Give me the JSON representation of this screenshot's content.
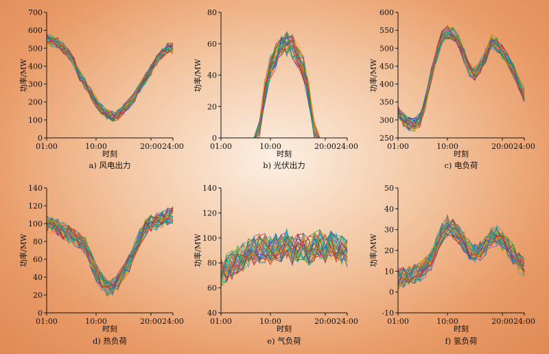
{
  "chart_data": [
    {
      "type": "line",
      "caption": "a) 风电出力",
      "xlabel": "时刻",
      "ylabel": "功率/MW",
      "xticks": [
        "01:00",
        "10:00",
        "20:00",
        "24:00"
      ],
      "xtick_hours": [
        1,
        10,
        20,
        24
      ],
      "ylim": [
        0,
        700
      ],
      "yticks": [
        0,
        100,
        200,
        300,
        400,
        500,
        600,
        700
      ],
      "hours": [
        1,
        2,
        3,
        4,
        5,
        6,
        7,
        8,
        9,
        10,
        11,
        12,
        13,
        14,
        15,
        16,
        17,
        18,
        19,
        20,
        21,
        22,
        23,
        24
      ],
      "mean": [
        550,
        540,
        530,
        500,
        470,
        420,
        350,
        300,
        250,
        200,
        160,
        130,
        120,
        130,
        160,
        190,
        230,
        280,
        330,
        380,
        430,
        470,
        500,
        500
      ],
      "spread": 30,
      "series_count": 36
    },
    {
      "type": "line",
      "caption": "b) 光伏出力",
      "xlabel": "时刻",
      "ylabel": "功率/MW",
      "xticks": [
        "01:00",
        "10:00",
        "20:00",
        "24:00"
      ],
      "xtick_hours": [
        1,
        10,
        20,
        24
      ],
      "ylim": [
        0,
        80
      ],
      "yticks": [
        0,
        20,
        40,
        60,
        80
      ],
      "hours": [
        1,
        2,
        3,
        4,
        5,
        6,
        7,
        8,
        9,
        10,
        11,
        12,
        13,
        14,
        15,
        16,
        17,
        18,
        19,
        20,
        21,
        22,
        23,
        24
      ],
      "mean": [
        0,
        0,
        0,
        0,
        0,
        0,
        0,
        3,
        30,
        45,
        52,
        58,
        60,
        58,
        52,
        45,
        28,
        3,
        0,
        0,
        0,
        0,
        0,
        0
      ],
      "spread": 8,
      "series_count": 36
    },
    {
      "type": "line",
      "caption": "c) 电负荷",
      "xlabel": "时刻",
      "ylabel": "功率/MW",
      "xticks": [
        "01:00",
        "10:00",
        "20:00",
        "24:00"
      ],
      "xtick_hours": [
        1,
        10,
        20,
        24
      ],
      "ylim": [
        250,
        600
      ],
      "yticks": [
        250,
        300,
        350,
        400,
        450,
        500,
        550,
        600
      ],
      "hours": [
        1,
        2,
        3,
        4,
        5,
        6,
        7,
        8,
        9,
        10,
        11,
        12,
        13,
        14,
        15,
        16,
        17,
        18,
        19,
        20,
        21,
        22,
        23,
        24
      ],
      "mean": [
        320,
        300,
        290,
        285,
        300,
        350,
        420,
        480,
        530,
        545,
        540,
        520,
        480,
        440,
        430,
        450,
        480,
        520,
        510,
        490,
        470,
        440,
        400,
        370
      ],
      "spread": 20,
      "series_count": 36
    },
    {
      "type": "line",
      "caption": "d) 热负荷",
      "xlabel": "时刻",
      "ylabel": "功率/MW",
      "xticks": [
        "01:00",
        "10:00",
        "20:00",
        "24:00"
      ],
      "xtick_hours": [
        1,
        10,
        20,
        24
      ],
      "ylim": [
        0,
        140
      ],
      "yticks": [
        0,
        20,
        40,
        60,
        80,
        100,
        120,
        140
      ],
      "hours": [
        1,
        2,
        3,
        4,
        5,
        6,
        7,
        8,
        9,
        10,
        11,
        12,
        13,
        14,
        15,
        16,
        17,
        18,
        19,
        20,
        21,
        22,
        23,
        24
      ],
      "mean": [
        100,
        98,
        95,
        92,
        88,
        85,
        80,
        75,
        60,
        45,
        35,
        28,
        30,
        35,
        45,
        55,
        70,
        85,
        95,
        100,
        102,
        105,
        108,
        110
      ],
      "spread": 10,
      "series_count": 36
    },
    {
      "type": "line",
      "caption": "e) 气负荷",
      "xlabel": "时刻",
      "ylabel": "功率/MW",
      "xticks": [
        "01:00",
        "10:00",
        "20:00",
        "24:00"
      ],
      "xtick_hours": [
        1,
        10,
        20,
        24
      ],
      "ylim": [
        40,
        140
      ],
      "yticks": [
        40,
        60,
        80,
        100,
        120,
        140
      ],
      "hours": [
        1,
        2,
        3,
        4,
        5,
        6,
        7,
        8,
        9,
        10,
        11,
        12,
        13,
        14,
        15,
        16,
        17,
        18,
        19,
        20,
        21,
        22,
        23,
        24
      ],
      "mean": [
        72,
        75,
        78,
        82,
        85,
        88,
        90,
        92,
        92,
        90,
        93,
        92,
        95,
        90,
        92,
        94,
        90,
        93,
        95,
        92,
        94,
        92,
        90,
        88
      ],
      "spread": 12,
      "series_count": 36
    },
    {
      "type": "line",
      "caption": "f) 氢负荷",
      "xlabel": "时刻",
      "ylabel": "功率/MW",
      "xticks": [
        "01:00",
        "10:00",
        "20:00",
        "24:00"
      ],
      "xtick_hours": [
        1,
        10,
        20,
        24
      ],
      "ylim": [
        -10,
        50
      ],
      "yticks": [
        -10,
        0,
        10,
        20,
        30,
        40,
        50
      ],
      "hours": [
        1,
        2,
        3,
        4,
        5,
        6,
        7,
        8,
        9,
        10,
        11,
        12,
        13,
        14,
        15,
        16,
        17,
        18,
        19,
        20,
        21,
        22,
        23,
        24
      ],
      "mean": [
        6,
        7,
        8,
        9,
        10,
        12,
        15,
        22,
        28,
        32,
        30,
        28,
        24,
        20,
        19,
        20,
        22,
        26,
        27,
        25,
        22,
        18,
        14,
        12
      ],
      "spread": 5,
      "series_count": 36
    }
  ],
  "palette": [
    "#1f77b4",
    "#ff7f0e",
    "#2ca02c",
    "#d62728",
    "#9467bd",
    "#8c564b",
    "#e377c2",
    "#7f7f7f",
    "#bcbd22",
    "#17becf",
    "#3a55b4",
    "#f0a500",
    "#00a86b",
    "#b22222",
    "#6a3d9a",
    "#20b2aa"
  ]
}
